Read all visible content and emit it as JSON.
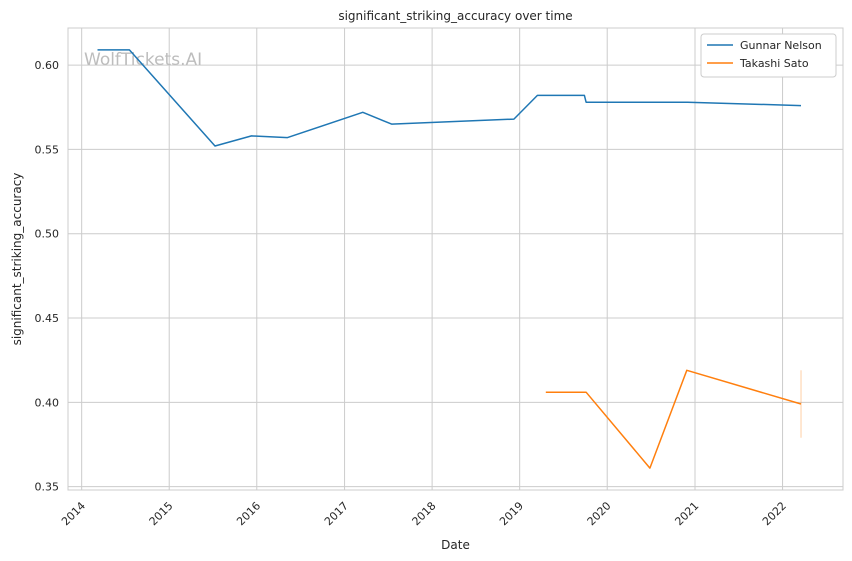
{
  "watermark": "WolfTickets.AI",
  "chart_data": {
    "type": "line",
    "title": "significant_striking_accuracy over time",
    "xlabel": "Date",
    "ylabel": "significant_striking_accuracy",
    "xlim": [
      "2013-11-05",
      "2022-09-10"
    ],
    "ylim": [
      0.348,
      0.622
    ],
    "x_ticks": [
      "2014",
      "2015",
      "2016",
      "2017",
      "2018",
      "2019",
      "2020",
      "2021",
      "2022"
    ],
    "y_ticks": [
      "0.35",
      "0.40",
      "0.45",
      "0.50",
      "0.55",
      "0.60"
    ],
    "grid": true,
    "legend_position": "top-right",
    "series": [
      {
        "name": "Gunnar Nelson",
        "color": "#1f77b4",
        "points": [
          {
            "x": "2014-03-08",
            "y": 0.609
          },
          {
            "x": "2014-07-19",
            "y": 0.609
          },
          {
            "x": "2015-07-11",
            "y": 0.552
          },
          {
            "x": "2015-12-10",
            "y": 0.558
          },
          {
            "x": "2016-05-08",
            "y": 0.557
          },
          {
            "x": "2017-03-18",
            "y": 0.572
          },
          {
            "x": "2017-07-16",
            "y": 0.565
          },
          {
            "x": "2018-12-08",
            "y": 0.568
          },
          {
            "x": "2019-03-16",
            "y": 0.582
          },
          {
            "x": "2019-09-28",
            "y": 0.582
          },
          {
            "x": "2019-10-05",
            "y": 0.578
          },
          {
            "x": "2020-12-01",
            "y": 0.578
          },
          {
            "x": "2022-03-19",
            "y": 0.576
          }
        ]
      },
      {
        "name": "Takashi Sato",
        "color": "#ff7f0e",
        "points": [
          {
            "x": "2019-04-20",
            "y": 0.406
          },
          {
            "x": "2019-10-05",
            "y": 0.406
          },
          {
            "x": "2020-06-27",
            "y": 0.361
          },
          {
            "x": "2020-11-28",
            "y": 0.419
          },
          {
            "x": "2022-03-19",
            "y": 0.399
          }
        ]
      }
    ],
    "error_band": {
      "x": "2022-03-19",
      "y_low": 0.379,
      "y_high": 0.419,
      "color": "#ff7f0e"
    }
  }
}
